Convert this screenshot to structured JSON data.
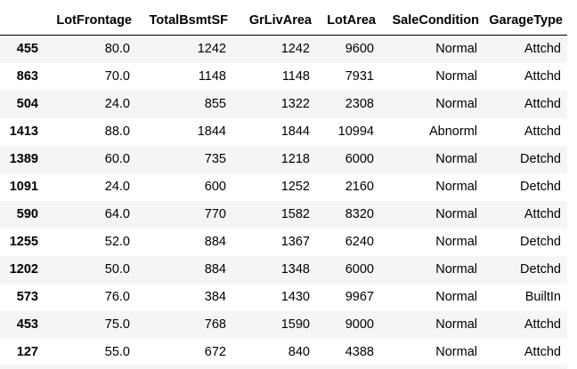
{
  "dataframe": {
    "columns": [
      "",
      "LotFrontage",
      "TotalBsmtSF",
      "GrLivArea",
      "LotArea",
      "SaleCondition",
      "GarageType"
    ],
    "rows": [
      {
        "index": "455",
        "cells": [
          "80.0",
          "1242",
          "1242",
          "9600",
          "Normal",
          "Attchd"
        ]
      },
      {
        "index": "863",
        "cells": [
          "70.0",
          "1148",
          "1148",
          "7931",
          "Normal",
          "Attchd"
        ]
      },
      {
        "index": "504",
        "cells": [
          "24.0",
          "855",
          "1322",
          "2308",
          "Normal",
          "Attchd"
        ]
      },
      {
        "index": "1413",
        "cells": [
          "88.0",
          "1844",
          "1844",
          "10994",
          "Abnorml",
          "Attchd"
        ]
      },
      {
        "index": "1389",
        "cells": [
          "60.0",
          "735",
          "1218",
          "6000",
          "Normal",
          "Detchd"
        ]
      },
      {
        "index": "1091",
        "cells": [
          "24.0",
          "600",
          "1252",
          "2160",
          "Normal",
          "Detchd"
        ]
      },
      {
        "index": "590",
        "cells": [
          "64.0",
          "770",
          "1582",
          "8320",
          "Normal",
          "Attchd"
        ]
      },
      {
        "index": "1255",
        "cells": [
          "52.0",
          "884",
          "1367",
          "6240",
          "Normal",
          "Detchd"
        ]
      },
      {
        "index": "1202",
        "cells": [
          "50.0",
          "884",
          "1348",
          "6000",
          "Normal",
          "Detchd"
        ]
      },
      {
        "index": "573",
        "cells": [
          "76.0",
          "384",
          "1430",
          "9967",
          "Normal",
          "BuiltIn"
        ]
      },
      {
        "index": "453",
        "cells": [
          "75.0",
          "768",
          "1590",
          "9000",
          "Normal",
          "Attchd"
        ]
      },
      {
        "index": "127",
        "cells": [
          "55.0",
          "672",
          "840",
          "4388",
          "Normal",
          "Attchd"
        ]
      }
    ]
  },
  "colors": {
    "stripe": "#f5f5f5",
    "header_rule": "#000000",
    "text": "#000000"
  }
}
